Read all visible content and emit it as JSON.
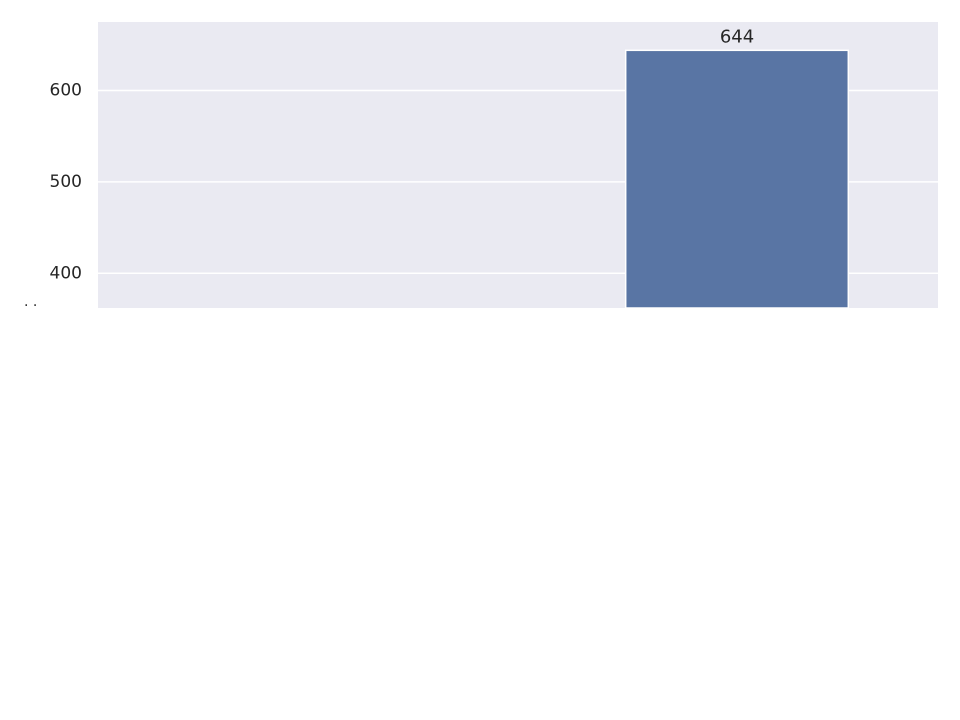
{
  "chart_data": {
    "type": "bar",
    "title": "",
    "xlabel": "",
    "ylabel": "",
    "categories": [
      "",
      ""
    ],
    "values": [
      null,
      644
    ],
    "data_labels": [
      "",
      "644"
    ],
    "ylim": [
      362,
      675
    ],
    "yticks": [
      400,
      500,
      600
    ],
    "ytick_labels": [
      "400",
      "500",
      "600"
    ],
    "grid": true,
    "legend": "none",
    "stray_text": "· ·"
  },
  "colors": {
    "plot_background": "#eaeaf2",
    "grid": "#ffffff",
    "bar": "#5975a4",
    "bar_edge": "#ffffff",
    "text": "#262626"
  }
}
